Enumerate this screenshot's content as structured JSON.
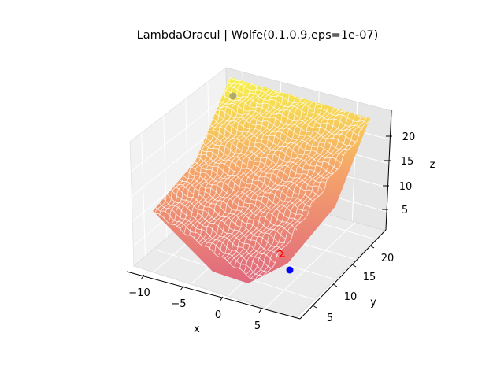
{
  "chart_data": {
    "type": "surface3d",
    "title": "LambdaOracul | Wolfe(0.1,0.9,eps=1e-07)",
    "xlabel": "x",
    "ylabel": "y",
    "zlabel": "z",
    "x_ticks": [
      "−10",
      "−5",
      "0",
      "5"
    ],
    "y_ticks": [
      "5",
      "10",
      "15",
      "20"
    ],
    "z_ticks": [
      "5",
      "10",
      "15",
      "20"
    ],
    "xlim": [
      -12,
      9
    ],
    "ylim": [
      2,
      23
    ],
    "zlim": [
      2,
      24
    ],
    "colormap": "spring-inverted (magenta-pink at low z to yellow at high z)",
    "surface_color_low": "#e0687e",
    "surface_color_high": "#f6f24a",
    "grid_line_color": "#ffffff",
    "grid": true,
    "optimization_path": {
      "start_point": {
        "x": -11,
        "y": 22,
        "z": 22,
        "color": "#9a9a6a"
      },
      "end_point": {
        "x": 6.5,
        "y": 3.5,
        "z": 4,
        "color": "#0000ff"
      },
      "path_color": "#ff0000"
    }
  }
}
